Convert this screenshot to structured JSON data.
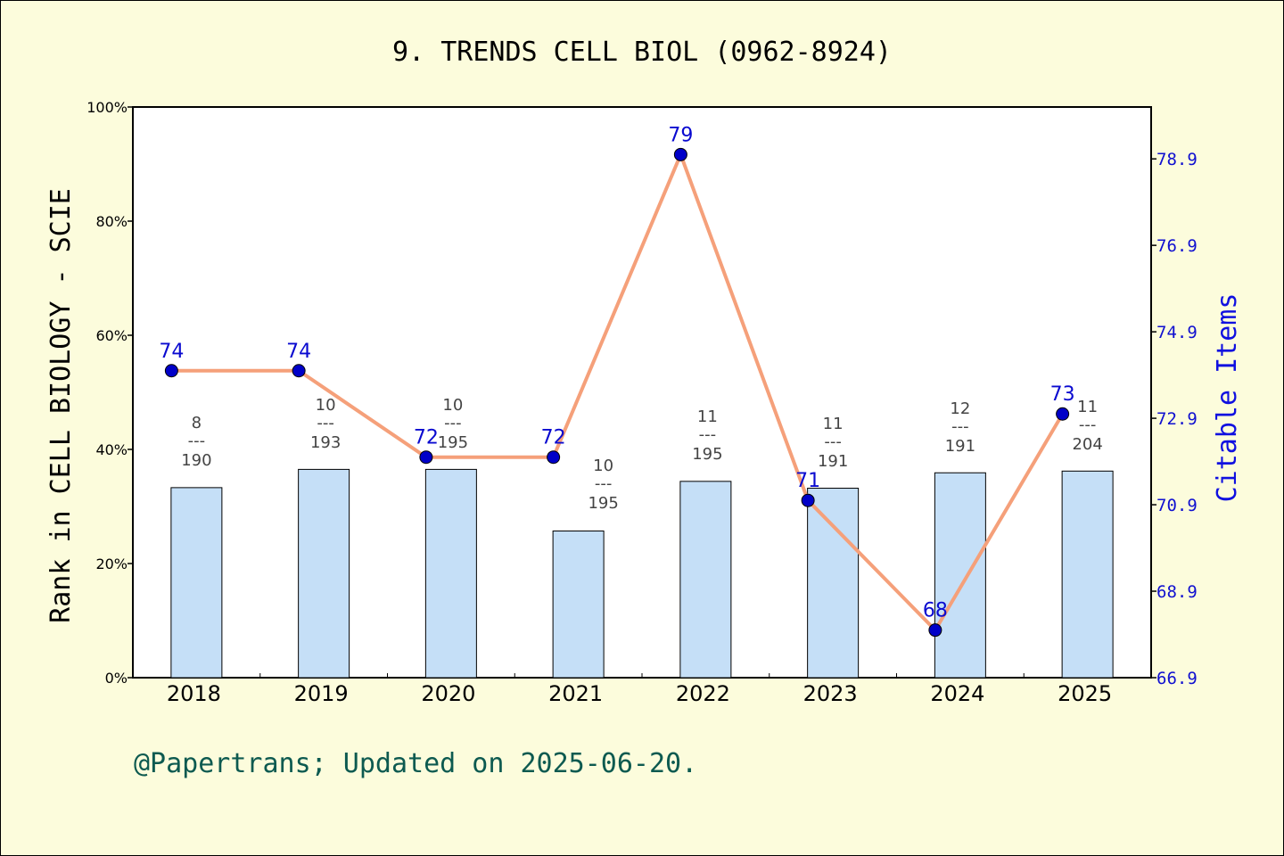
{
  "chart_data": {
    "type": "bar+line",
    "title": "9. TRENDS CELL BIOL (0962-8924)",
    "categories": [
      "2018",
      "2019",
      "2020",
      "2021",
      "2022",
      "2023",
      "2024",
      "2025"
    ],
    "left_axis": {
      "label": "Rank in CELL BIOLOGY - SCIE",
      "ticks": [
        "0%",
        "20%",
        "40%",
        "60%",
        "80%",
        "100%"
      ],
      "range": [
        0,
        100
      ]
    },
    "right_axis": {
      "label": "Citable Items",
      "ticks": [
        "66.9",
        "68.9",
        "70.9",
        "72.9",
        "74.9",
        "76.9",
        "78.9"
      ],
      "range": [
        66.9,
        80.1
      ],
      "color": "#1010d0"
    },
    "bars": {
      "color": "#c5dff7",
      "values": [
        33.3,
        36.5,
        36.5,
        25.7,
        34.4,
        33.2,
        35.9,
        36.2
      ],
      "rank_labels": [
        {
          "num": "8",
          "sep": "---",
          "den": "190"
        },
        {
          "num": "10",
          "sep": "---",
          "den": "193"
        },
        {
          "num": "10",
          "sep": "---",
          "den": "195"
        },
        {
          "num": "10",
          "sep": "---",
          "den": "195"
        },
        {
          "num": "11",
          "sep": "---",
          "den": "195"
        },
        {
          "num": "11",
          "sep": "---",
          "den": "191"
        },
        {
          "num": "12",
          "sep": "---",
          "den": "191"
        },
        {
          "num": "11",
          "sep": "---",
          "den": "204"
        }
      ]
    },
    "line": {
      "color": "#f5a07a",
      "marker_color": "#0000c8",
      "values": [
        74,
        74,
        72,
        72,
        79,
        71,
        68,
        73
      ],
      "labels": [
        "74",
        "74",
        "72",
        "72",
        "79",
        "71",
        "68",
        "73"
      ]
    }
  },
  "footer": "@Papertrans; Updated on 2025-06-20."
}
